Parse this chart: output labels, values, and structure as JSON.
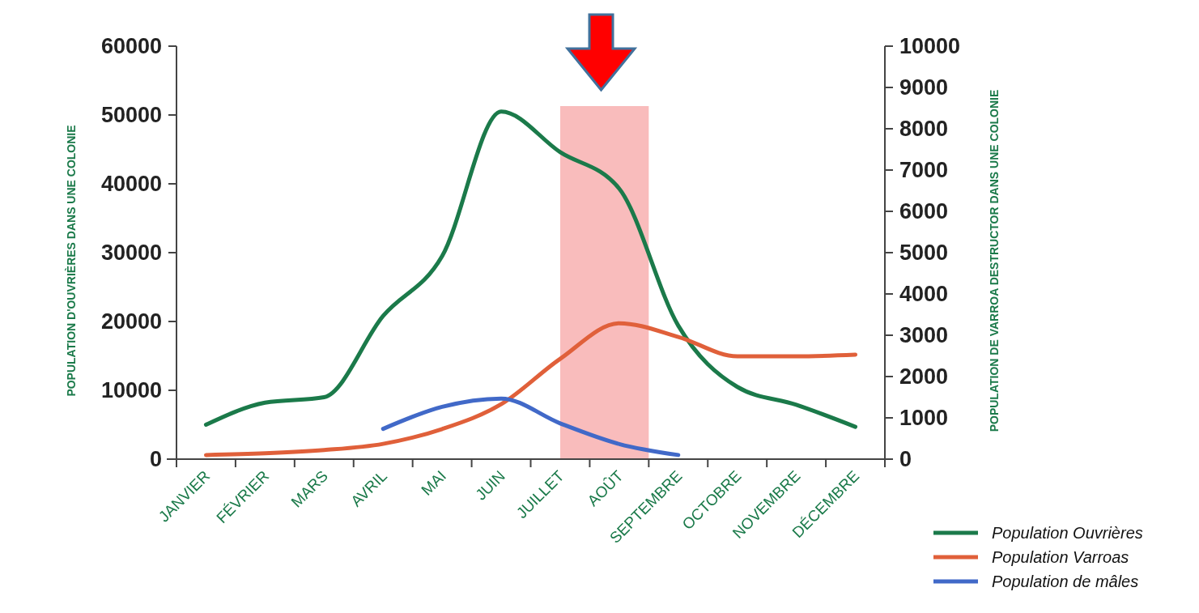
{
  "chart_data": {
    "type": "line",
    "categories": [
      "JANVIER",
      "FÉVRIER",
      "MARS",
      "AVRIL",
      "MAI",
      "JUIN",
      "JUILLET",
      "AOÛT",
      "SEPTEMBRE",
      "OCTOBRE",
      "NOVEMBRE",
      "DÉCEMBRE"
    ],
    "series": [
      {
        "name": "Population Ouvrières",
        "color": "#1b7a4a",
        "values": [
          5000,
          8200,
          9000,
          20800,
          29500,
          50500,
          44600,
          39300,
          19400,
          10500,
          7900,
          4700
        ]
      },
      {
        "name": "Population Varroas",
        "color": "#e0603a",
        "axis": "y2",
        "values": [
          100,
          140,
          220,
          370,
          730,
          1330,
          2430,
          3290,
          2960,
          2490,
          2490,
          2530
        ]
      },
      {
        "name": "Population de mâles",
        "color": "#4169c8",
        "values": [
          null,
          null,
          null,
          4400,
          7600,
          8800,
          5200,
          2200,
          600,
          null,
          null,
          null
        ]
      }
    ],
    "ylabel": "POPULATION D'OUVRIÈRES DANS UNE COLONIE",
    "y2label": "POPULATION DE VARROA DESTRUCTOR DANS UNE COLONIE",
    "ylim": [
      0,
      60000
    ],
    "yticks": [
      0,
      10000,
      20000,
      30000,
      40000,
      50000,
      60000
    ],
    "y2lim": [
      0,
      10000
    ],
    "y2ticks": [
      0,
      1000,
      2000,
      3000,
      4000,
      5000,
      6000,
      7000,
      8000,
      9000,
      10000
    ],
    "bands": [
      {
        "axis": "x",
        "from": "JUILLET",
        "to": "AOÛT",
        "color": "#f9bcbc"
      }
    ],
    "legend": "bottom right",
    "grid": false,
    "line_style": "solid"
  }
}
